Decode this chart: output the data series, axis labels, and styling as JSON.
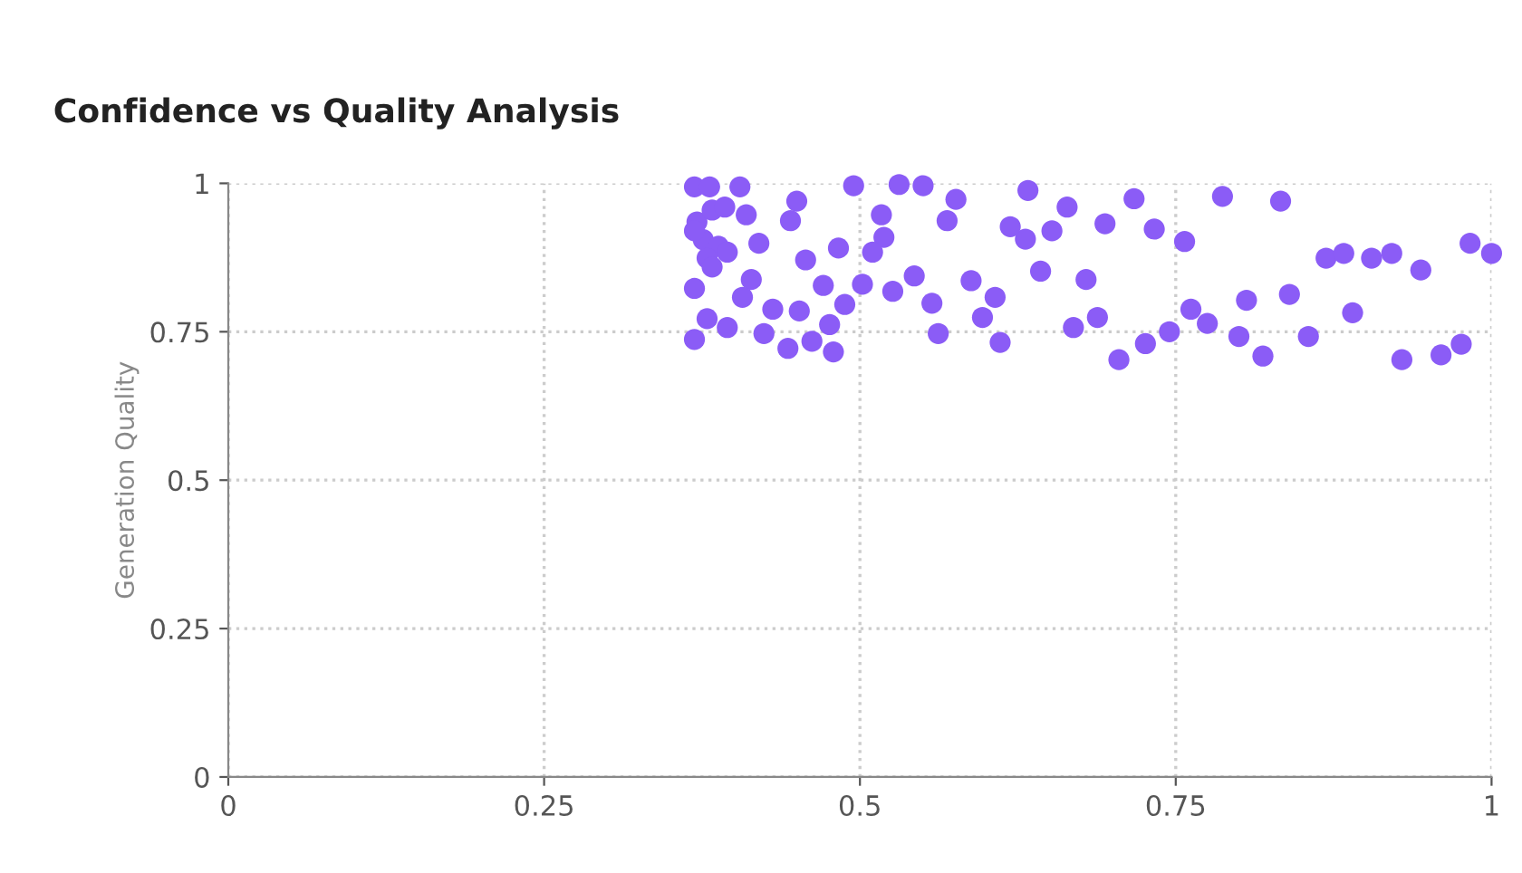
{
  "chart_data": {
    "type": "scatter",
    "title": "Confidence vs Quality Analysis",
    "ylabel": "Generation Quality",
    "xlim": [
      0,
      1
    ],
    "ylim": [
      0,
      1
    ],
    "xticks": [
      0,
      0.25,
      0.5,
      0.75,
      1
    ],
    "yticks": [
      0,
      0.25,
      0.5,
      0.75,
      1
    ],
    "grid": true,
    "marker": "circle",
    "series": [
      {
        "color": "#8b5cf6",
        "x": [
          0.369,
          0.381,
          0.405,
          0.45,
          0.445,
          0.495,
          0.531,
          0.55,
          0.576,
          0.569,
          0.517,
          0.519,
          0.51,
          0.483,
          0.457,
          0.42,
          0.371,
          0.383,
          0.393,
          0.41,
          0.376,
          0.388,
          0.395,
          0.379,
          0.369,
          0.383,
          0.471,
          0.502,
          0.526,
          0.543,
          0.557,
          0.588,
          0.607,
          0.597,
          0.562,
          0.611,
          0.488,
          0.476,
          0.479,
          0.462,
          0.443,
          0.452,
          0.431,
          0.424,
          0.414,
          0.407,
          0.395,
          0.369,
          0.369,
          0.379,
          0.643,
          0.631,
          0.619,
          0.633,
          0.652,
          0.664,
          0.669,
          0.717,
          0.694,
          0.733,
          0.757,
          0.787,
          0.833,
          0.869,
          0.883,
          0.905,
          0.921,
          0.944,
          0.983,
          1.0,
          0.679,
          0.688,
          0.705,
          0.726,
          0.745,
          0.762,
          0.775,
          0.806,
          0.8,
          0.819,
          0.84,
          0.855,
          0.89,
          0.929,
          0.96,
          0.976
        ],
        "values": [
          0.994,
          0.994,
          0.994,
          0.97,
          0.937,
          0.996,
          0.998,
          0.996,
          0.973,
          0.937,
          0.947,
          0.909,
          0.884,
          0.891,
          0.871,
          0.899,
          0.935,
          0.955,
          0.96,
          0.947,
          0.905,
          0.894,
          0.884,
          0.874,
          0.92,
          0.859,
          0.828,
          0.83,
          0.818,
          0.844,
          0.798,
          0.836,
          0.808,
          0.774,
          0.747,
          0.732,
          0.796,
          0.762,
          0.716,
          0.734,
          0.722,
          0.785,
          0.788,
          0.747,
          0.838,
          0.808,
          0.757,
          0.823,
          0.737,
          0.772,
          0.852,
          0.906,
          0.927,
          0.988,
          0.92,
          0.96,
          0.757,
          0.974,
          0.932,
          0.923,
          0.902,
          0.978,
          0.97,
          0.874,
          0.882,
          0.874,
          0.882,
          0.854,
          0.899,
          0.882,
          0.838,
          0.774,
          0.703,
          0.73,
          0.75,
          0.788,
          0.764,
          0.803,
          0.742,
          0.709,
          0.813,
          0.742,
          0.782,
          0.703,
          0.711,
          0.729
        ]
      }
    ]
  }
}
